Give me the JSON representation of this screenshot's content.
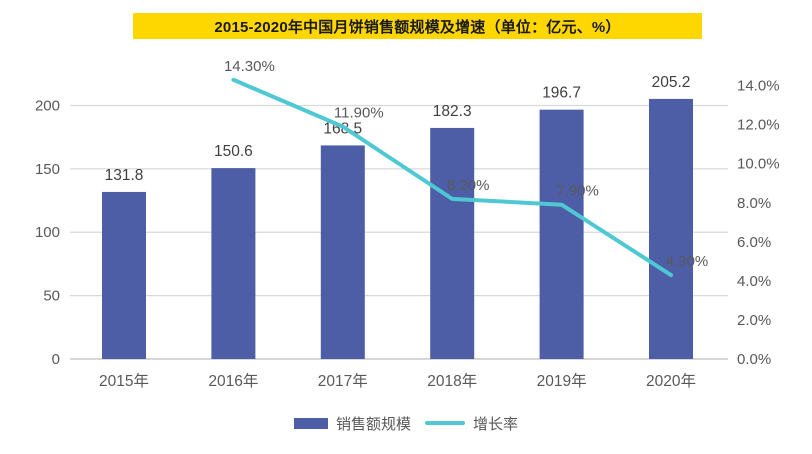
{
  "title": {
    "text": "2015-2020年中国月饼销售额规模及增速（单位：亿元、%）"
  },
  "colors": {
    "banner": "#FFD700",
    "bar": "#4D5EA7",
    "line": "#4EC8D2",
    "grid": "#D9D9D9",
    "baseline": "#BFBFBF",
    "axis_text": "#595959",
    "value_text": "#404040"
  },
  "legend": {
    "items": [
      {
        "label": "销售额规模",
        "marker": "bar-swatch"
      },
      {
        "label": "增长率",
        "marker": "line-swatch"
      }
    ]
  },
  "chart_data": {
    "type": "bar+line (dual axis combo)",
    "title": "2015-2020年中国月饼销售额规模及增速（单位：亿元、%）",
    "categories": [
      "2015年",
      "2016年",
      "2017年",
      "2018年",
      "2019年",
      "2020年"
    ],
    "series": [
      {
        "name": "销售额规模",
        "type": "bar",
        "axis": "left",
        "unit": "亿元",
        "values": [
          131.8,
          150.6,
          168.5,
          182.3,
          196.7,
          205.2
        ],
        "labels": [
          "131.8",
          "150.6",
          "168.5",
          "182.3",
          "196.7",
          "205.2"
        ]
      },
      {
        "name": "增长率",
        "type": "line",
        "axis": "right",
        "unit": "%",
        "values": [
          null,
          14.3,
          11.9,
          8.2,
          7.9,
          4.3
        ],
        "labels": [
          null,
          "14.30%",
          "11.90%",
          "8.20%",
          "7.90%",
          "4.30%"
        ]
      }
    ],
    "left_axis": {
      "ticks": [
        0,
        50,
        100,
        150,
        200
      ],
      "tick_labels": [
        "0",
        "50",
        "100",
        "150",
        "200"
      ],
      "range": [
        0,
        228
      ]
    },
    "right_axis": {
      "ticks": [
        0,
        2,
        4,
        6,
        8,
        10,
        12,
        14
      ],
      "tick_labels": [
        "0.0%",
        "2.0%",
        "4.0%",
        "6.0%",
        "8.0%",
        "10.0%",
        "12.0%",
        "14.0%"
      ],
      "range": [
        0,
        14.8
      ]
    },
    "grid": true,
    "legend_position": "bottom"
  }
}
